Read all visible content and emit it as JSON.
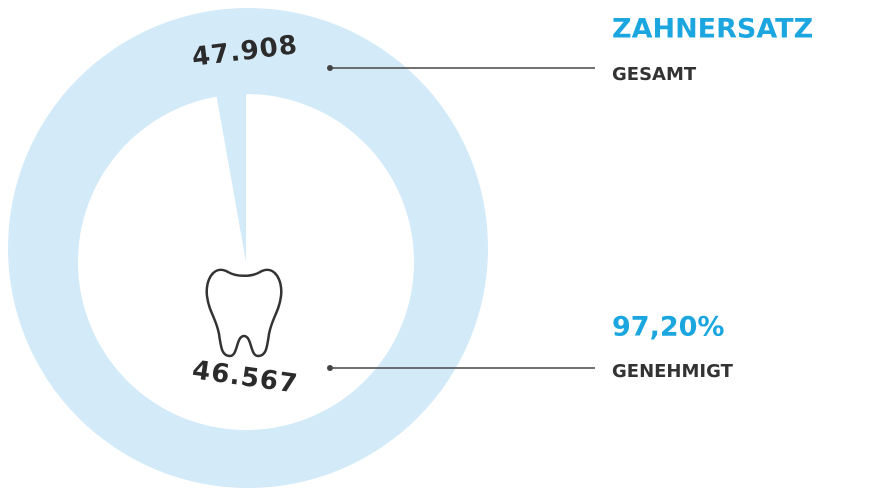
{
  "chart_data": {
    "type": "pie",
    "title": "ZAHNERSATZ",
    "categories": [
      "GESAMT",
      "GENEHMIGT"
    ],
    "values": [
      47908,
      46567
    ],
    "value_labels": [
      "47.908",
      "46.567"
    ],
    "percent": 97.2,
    "percent_label": "97,20%",
    "colors": [
      "#d3eaf8",
      "#ffffff"
    ],
    "accent": "#1ba6df"
  }
}
